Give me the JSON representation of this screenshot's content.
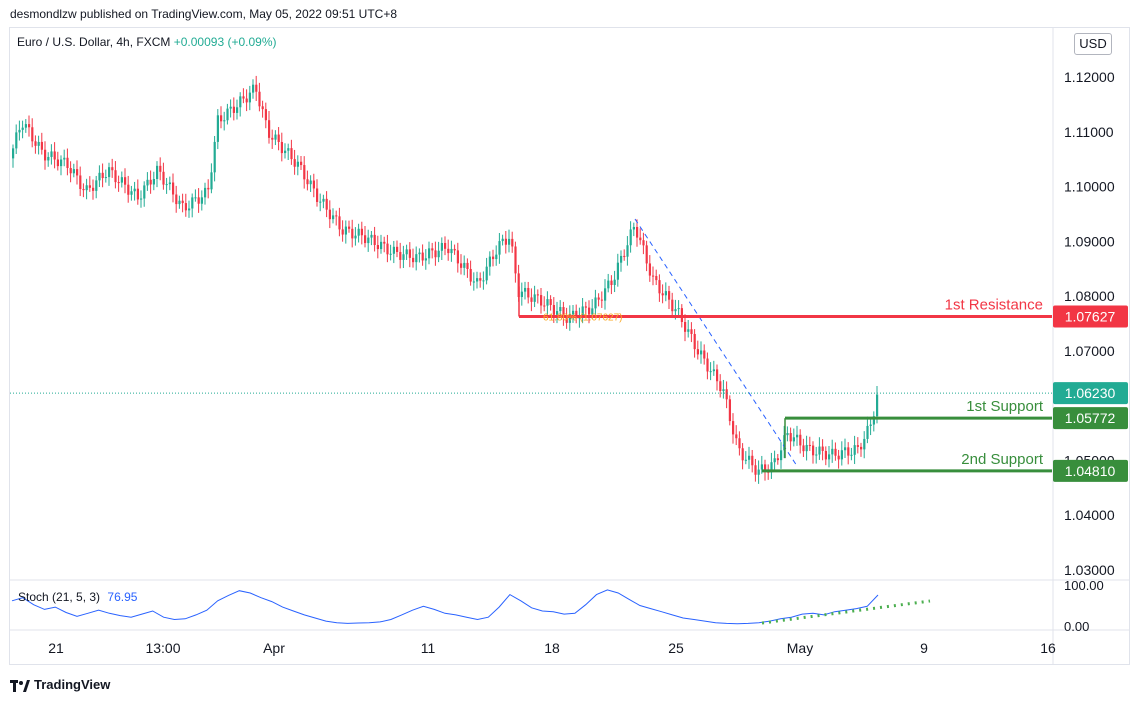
{
  "header": {
    "published": "desmondlzw published on TradingView.com, May 05, 2022 09:51 UTC+8"
  },
  "symbol": {
    "name": "Euro / U.S. Dollar, 4h, FXCM",
    "change": "+0.00093 (+0.09%)"
  },
  "currency": "USD",
  "chart_data": {
    "type": "candlestick",
    "y_axis": {
      "ticks": [
        "1.12000",
        "1.11000",
        "1.10000",
        "1.09000",
        "1.08000",
        "1.07000",
        "1.05000",
        "1.04000",
        "1.03000"
      ],
      "ylim": [
        1.0265,
        1.1258
      ]
    },
    "x_axis": {
      "ticks": [
        "21",
        "13:00",
        "Apr",
        "11",
        "18",
        "25",
        "May",
        "9",
        "16"
      ]
    },
    "current_price": "1.06230",
    "levels": [
      {
        "label": "1st Resistance",
        "price": 1.07627,
        "price_label": "1.07627",
        "color": "#f23645"
      },
      {
        "label": "1st Support",
        "price": 1.05772,
        "price_label": "1.05772",
        "color": "#388e3c"
      },
      {
        "label": "2nd Support",
        "price": 1.0481,
        "price_label": "1.04810",
        "color": "#388e3c"
      }
    ],
    "fib_label": "61.80% (1.07627)",
    "colors": {
      "up": "#22ab94",
      "down": "#f23645",
      "support": "#388e3c",
      "resistance": "#f23645",
      "stoch": "#2962ff"
    },
    "stochastic": {
      "label": "Stoch (21, 5, 3)",
      "value": "76.95",
      "axis_ticks": [
        "100.00",
        "0.00"
      ],
      "ylim": [
        0,
        100
      ],
      "values": [
        62,
        70,
        52,
        40,
        46,
        32,
        22,
        30,
        38,
        30,
        24,
        20,
        28,
        36,
        20,
        14,
        16,
        26,
        38,
        62,
        76,
        88,
        82,
        70,
        60,
        46,
        36,
        26,
        18,
        10,
        6,
        4,
        5,
        6,
        8,
        14,
        26,
        38,
        48,
        40,
        30,
        26,
        20,
        14,
        20,
        46,
        78,
        62,
        44,
        36,
        34,
        28,
        30,
        52,
        78,
        90,
        82,
        66,
        50,
        42,
        34,
        26,
        18,
        14,
        10,
        6,
        4,
        3,
        4,
        6,
        10,
        16,
        20,
        28,
        30,
        26,
        34,
        38,
        42,
        48,
        77
      ]
    }
  },
  "footer": {
    "brand": "TradingView"
  }
}
